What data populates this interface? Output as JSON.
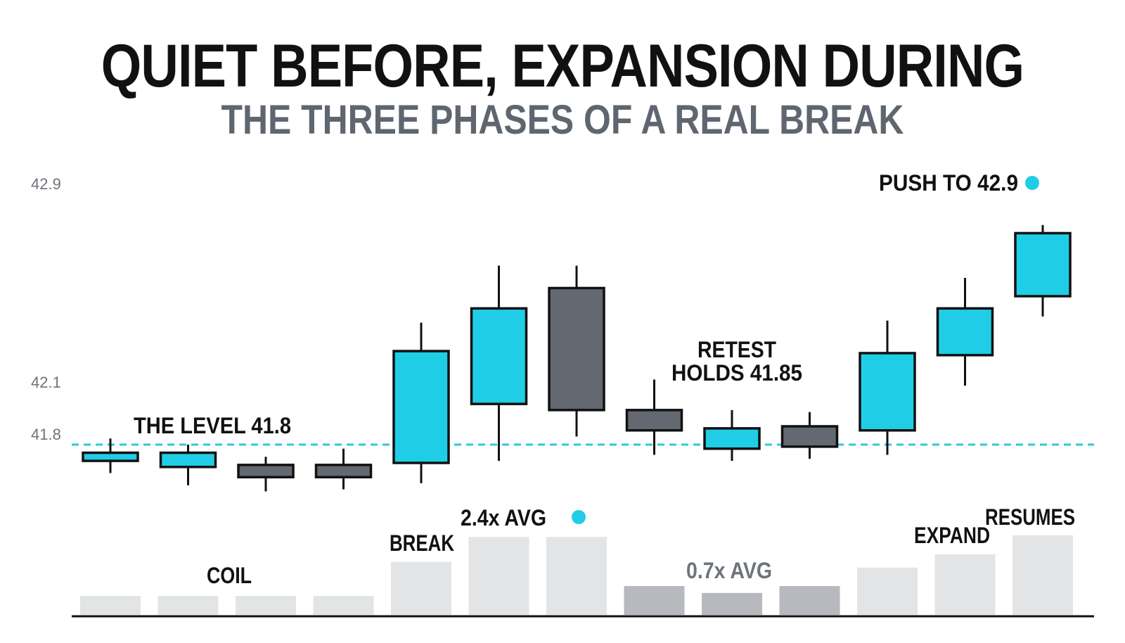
{
  "chart_data": {
    "type": "candlestick",
    "title": "QUIET BEFORE, EXPANSION DURING",
    "subtitle": "THE THREE PHASES OF A REAL BREAK",
    "y_ticks": [
      "42.9",
      "42.1",
      "41.8"
    ],
    "level": {
      "value": 41.8,
      "style": "dashed"
    },
    "candles": [
      {
        "open": 41.72,
        "close": 41.76,
        "high": 41.83,
        "low": 41.66,
        "dir": "up"
      },
      {
        "open": 41.69,
        "close": 41.76,
        "high": 41.8,
        "low": 41.6,
        "dir": "up"
      },
      {
        "open": 41.7,
        "close": 41.64,
        "high": 41.74,
        "low": 41.57,
        "dir": "down"
      },
      {
        "open": 41.7,
        "close": 41.64,
        "high": 41.78,
        "low": 41.58,
        "dir": "down"
      },
      {
        "open": 41.71,
        "close": 42.26,
        "high": 42.4,
        "low": 41.61,
        "dir": "up"
      },
      {
        "open": 42.0,
        "close": 42.47,
        "high": 42.68,
        "low": 41.72,
        "dir": "up"
      },
      {
        "open": 42.57,
        "close": 41.97,
        "high": 42.68,
        "low": 41.84,
        "dir": "down"
      },
      {
        "open": 41.97,
        "close": 41.87,
        "high": 42.12,
        "low": 41.75,
        "dir": "down"
      },
      {
        "open": 41.78,
        "close": 41.88,
        "high": 41.97,
        "low": 41.72,
        "dir": "up"
      },
      {
        "open": 41.89,
        "close": 41.79,
        "high": 41.96,
        "low": 41.73,
        "dir": "down"
      },
      {
        "open": 41.87,
        "close": 42.25,
        "high": 42.41,
        "low": 41.75,
        "dir": "up"
      },
      {
        "open": 42.24,
        "close": 42.47,
        "high": 42.62,
        "low": 42.09,
        "dir": "up"
      },
      {
        "open": 42.53,
        "close": 42.84,
        "high": 42.88,
        "low": 42.43,
        "dir": "up"
      }
    ],
    "volume": [
      0.33,
      0.33,
      0.33,
      0.33,
      0.92,
      1.35,
      1.35,
      0.5,
      0.38,
      0.5,
      0.82,
      1.05,
      1.38
    ],
    "volume_shade": [
      "light",
      "light",
      "light",
      "light",
      "light",
      "light",
      "light",
      "dark",
      "dark",
      "dark",
      "light",
      "light",
      "light"
    ],
    "annotations": {
      "level": "THE LEVEL 41.8",
      "retest_line1": "RETEST",
      "retest_line2": "HOLDS 41.85",
      "push": "PUSH TO 42.9",
      "coil": "COIL",
      "break": "BREAK",
      "avg_high": "2.4x AVG",
      "avg_low": "0.7x AVG",
      "expand": "EXPAND",
      "resumes": "RESUMES"
    },
    "colors": {
      "up": "#20cde6",
      "down": "#646870",
      "outline": "#111111",
      "level": "#2fc7dd",
      "volume_light": "#e3e4e6",
      "volume_dark": "#b7b9be",
      "marker": "#20cde6"
    }
  }
}
